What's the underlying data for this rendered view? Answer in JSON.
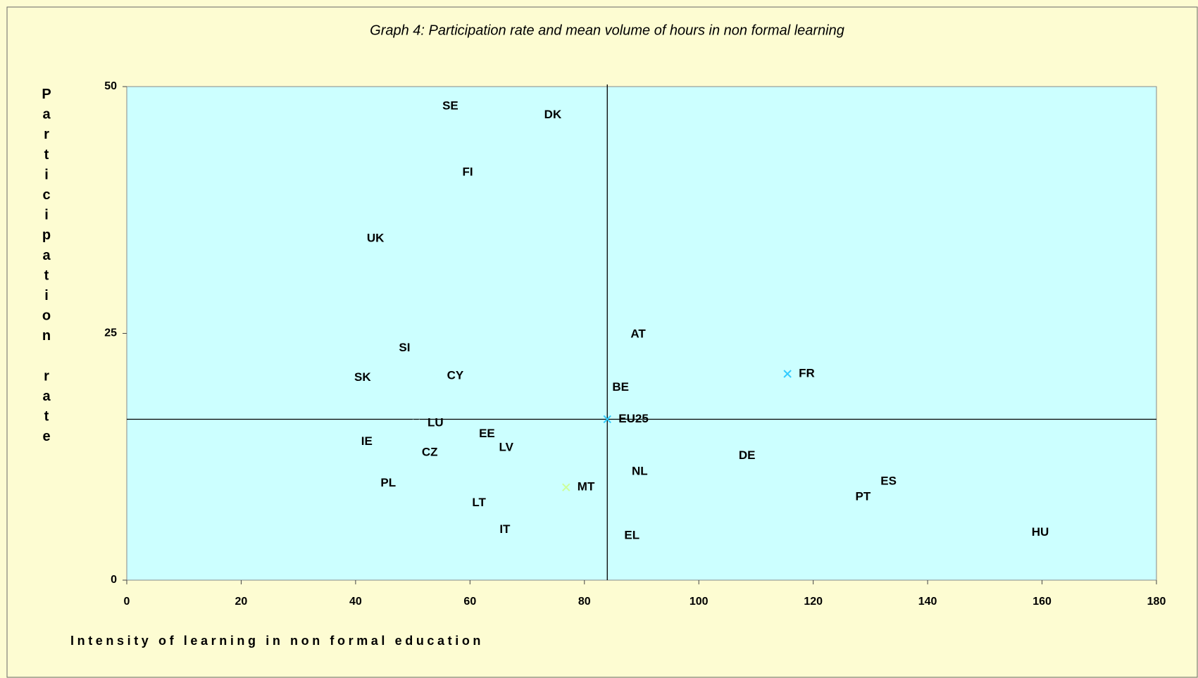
{
  "chart_data": {
    "type": "scatter",
    "title": "Graph 4: Participation rate and mean volume of hours in non formal learning",
    "xlabel": "Intensity of learning in non formal education",
    "ylabel": "Participation rate",
    "xlim": [
      0,
      180
    ],
    "ylim": [
      0,
      50
    ],
    "xticks": [
      0,
      20,
      40,
      60,
      80,
      100,
      120,
      140,
      160,
      180
    ],
    "yticks": [
      0,
      25,
      50
    ],
    "labels": [
      "SE",
      "DK",
      "FI",
      "UK",
      "SI",
      "SK",
      "CY",
      "AT",
      "BE",
      "FR",
      "EU25",
      "LU",
      "EE",
      "IE",
      "LV",
      "CZ",
      "DE",
      "NL",
      "ES",
      "PL",
      "MT",
      "PT",
      "LT",
      "IT",
      "EL",
      "HU"
    ],
    "x": [
      53.2,
      71.0,
      56.7,
      40.0,
      45.6,
      37.8,
      54.0,
      86.1,
      82.9,
      115.5,
      84.0,
      50.6,
      59.6,
      39.0,
      63.1,
      49.6,
      105.0,
      86.3,
      129.8,
      42.4,
      76.8,
      125.4,
      58.4,
      63.2,
      85.0,
      156.2
    ],
    "y": [
      48.0,
      47.1,
      41.3,
      34.6,
      23.5,
      20.5,
      20.7,
      24.9,
      19.5,
      20.9,
      16.3,
      15.9,
      14.8,
      14.0,
      13.4,
      12.9,
      12.6,
      11.0,
      10.0,
      9.8,
      9.4,
      8.4,
      7.8,
      5.1,
      4.5,
      4.8
    ],
    "colors": [
      "#ccffff",
      "#ccffff",
      "#ccffff",
      "#ccffff",
      "#ccffff",
      "#ccffff",
      "#ccffff",
      "#ccffff",
      "#ccffff",
      "#33ccff",
      "#33ccff",
      "#ccffff",
      "#ccffff",
      "#ccffff",
      "#ccffff",
      "#ccffff",
      "#ccffff",
      "#ccffff",
      "#ccffff",
      "#ccffff",
      "#ccff99",
      "#ccffff",
      "#ccffff",
      "#ccffff",
      "#ccffff",
      "#ccffff"
    ]
  }
}
